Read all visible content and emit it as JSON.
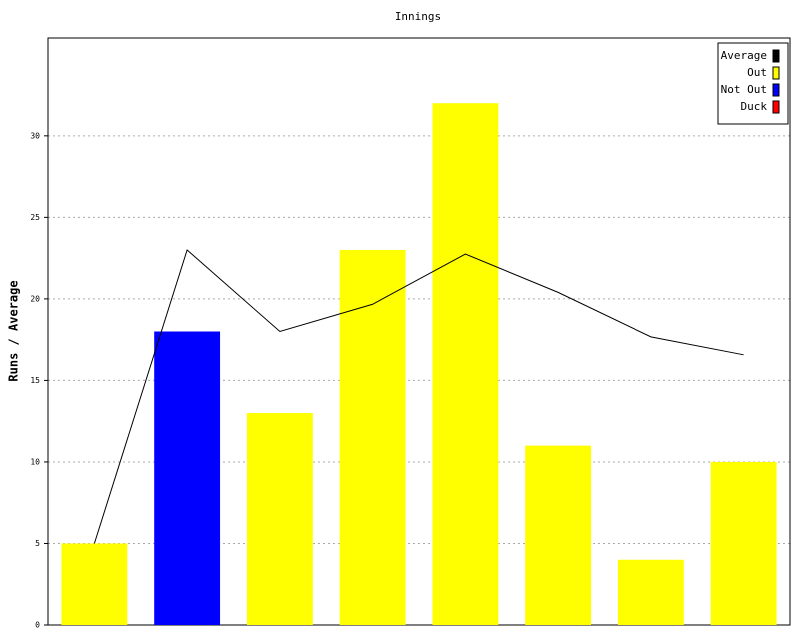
{
  "chart_data": {
    "type": "bar",
    "title": "Innings",
    "y_label": "Runs / Average",
    "categories": [
      null,
      null,
      null,
      null,
      null,
      null,
      null,
      null
    ],
    "series": [
      {
        "name": "Average",
        "type": "line",
        "color": "#000000",
        "values": [
          5,
          23,
          18,
          19.67,
          22.75,
          20.4,
          17.67,
          16.57
        ]
      },
      {
        "name": "Out",
        "type": "bar",
        "color": "#ffff00",
        "values": [
          5,
          null,
          13,
          23,
          32,
          11,
          4,
          10
        ]
      },
      {
        "name": "Not Out",
        "type": "bar",
        "color": "#0000ff",
        "values": [
          null,
          18,
          null,
          null,
          null,
          null,
          null,
          null
        ]
      },
      {
        "name": "Duck",
        "type": "bar",
        "color": "#ff0000",
        "values": [
          null,
          null,
          null,
          null,
          null,
          null,
          null,
          null
        ]
      }
    ],
    "ylim": [
      0,
      36
    ],
    "yticks": [
      0,
      5,
      10,
      15,
      20,
      25,
      30
    ],
    "grid": true,
    "legend": "top-right"
  }
}
